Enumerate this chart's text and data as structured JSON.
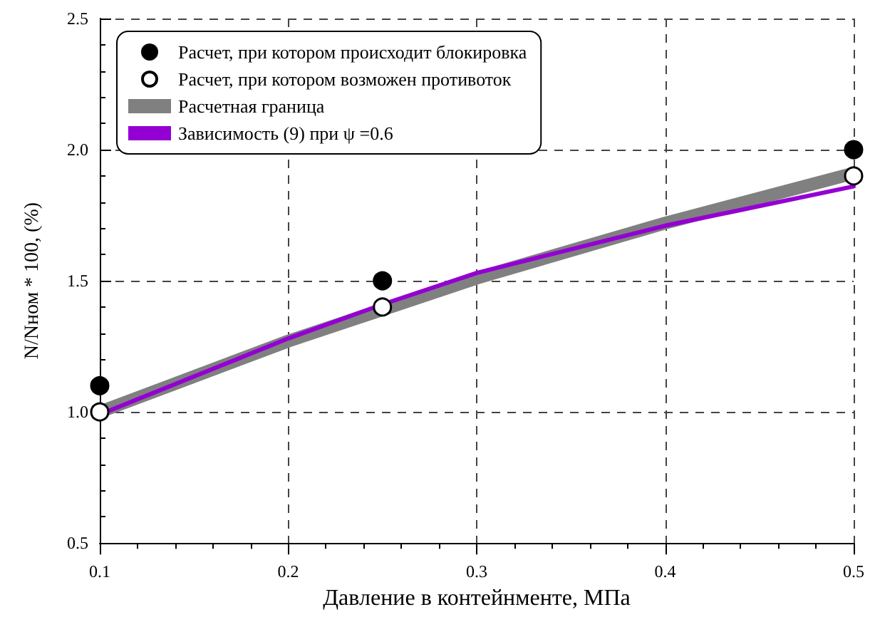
{
  "chart_data": {
    "type": "line",
    "xlabel": "Давление в контейнменте, МПа",
    "ylabel": "N/Nном * 100, (%)",
    "xlim": [
      0.1,
      0.5
    ],
    "xticks": [
      0.1,
      0.2,
      0.3,
      0.4,
      0.5
    ],
    "ylim": [
      0.5,
      2.5
    ],
    "yticks": [
      {
        "value": 0.5,
        "label": "0.5"
      },
      {
        "value": 1.0,
        "label": "1.0"
      },
      {
        "value": 1.5,
        "label": "1.5"
      },
      {
        "value": 2.0,
        "label": "2.0"
      },
      {
        "value": 2.5,
        "label": "2.5"
      }
    ],
    "grid": true,
    "legend": "top left",
    "line_style": "solid",
    "series": [
      {
        "name": "Расчет, при котором происходит блокировка",
        "type": "scatter",
        "marker": "circle",
        "color": "#000000",
        "x": [
          0.1,
          0.25,
          0.5
        ],
        "values": [
          1.1,
          1.5,
          2.0
        ]
      },
      {
        "name": "Расчет, при котором возможен противоток",
        "type": "scatter",
        "marker": "circle",
        "color": "#ffffff",
        "x": [
          0.1,
          0.25,
          0.5
        ],
        "values": [
          1.0,
          1.4,
          1.9
        ]
      },
      {
        "name": "Расчетная граница",
        "marker": "none",
        "color": "#808080",
        "x": [
          0.1,
          0.2,
          0.25,
          0.3,
          0.4,
          0.5
        ],
        "values": [
          1.0,
          1.27,
          1.39,
          1.51,
          1.72,
          1.91
        ]
      },
      {
        "name": "Зависимость (9) при ψ =0.6",
        "marker": "none",
        "color": "#9400d3",
        "x": [
          0.1,
          0.2,
          0.25,
          0.3,
          0.4,
          0.5
        ],
        "values": [
          0.99,
          1.28,
          1.41,
          1.53,
          1.71,
          1.86
        ]
      }
    ]
  }
}
